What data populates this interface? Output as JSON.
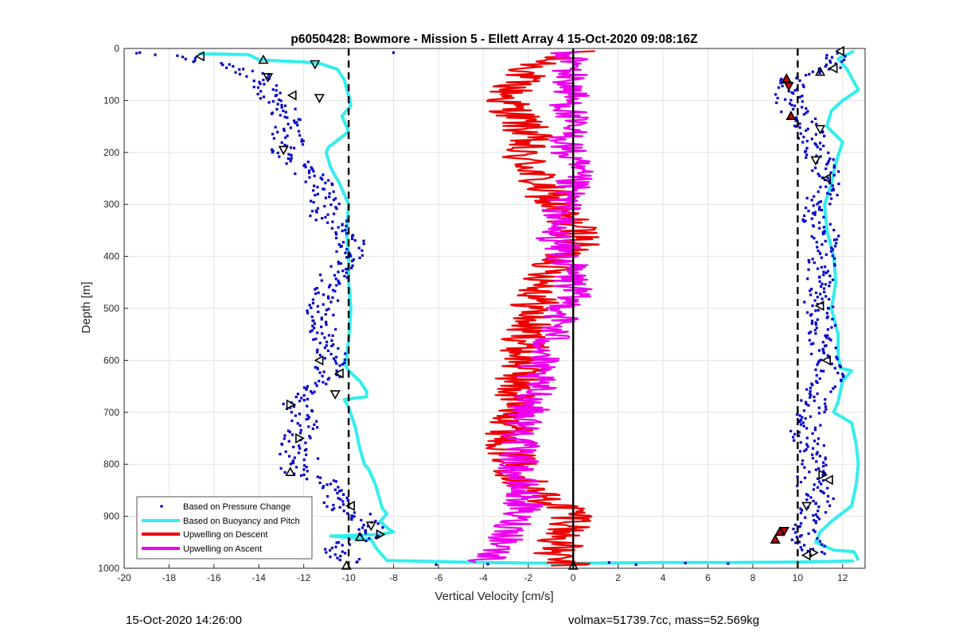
{
  "chart_data": {
    "type": "scatter",
    "title": "p6050428: Bowmore - Mission 5 - Ellett Array 4 15-Oct-2020 09:08:16Z",
    "xlabel": "Vertical Velocity [cm/s]",
    "ylabel": "Depth [m]",
    "xlim": [
      -20,
      13
    ],
    "ylim": [
      0,
      1000
    ],
    "y_reversed": true,
    "grid": true,
    "legend_placement": "bottom-left",
    "x_ticks": [
      -20,
      -18,
      -16,
      -14,
      -12,
      -10,
      -8,
      -6,
      -4,
      -2,
      0,
      2,
      4,
      6,
      8,
      10,
      12
    ],
    "y_ticks": [
      0,
      100,
      200,
      300,
      400,
      500,
      600,
      700,
      800,
      900,
      1000
    ],
    "reference_lines": [
      {
        "x": -10,
        "style": "dashed",
        "color": "#000000"
      },
      {
        "x": 10,
        "style": "dashed",
        "color": "#000000"
      },
      {
        "x": 0,
        "style": "solid",
        "color": "#000000"
      }
    ],
    "series": [
      {
        "name": "Based on Pressure Change",
        "style": "dots",
        "color": "#0000c8",
        "profiles": [
          {
            "x": [
              -19.3,
              -16.8,
              -14.2,
              -13.8,
              -13.5,
              -12.9,
              -12.7,
              -12.8,
              -12.6,
              -12.9,
              -12.1,
              -11.5,
              -11.3,
              -11.0,
              -11.3,
              -10.2,
              -9.9,
              -10.0,
              -10.6,
              -10.9,
              -11.1,
              -11.3,
              -11.2,
              -10.8,
              -10.8,
              -10.9,
              -11.3,
              -12.5,
              -12.2,
              -12.0,
              -12.3,
              -12.5,
              -11.8,
              -12.6,
              -11.2,
              -10.7,
              -10.5,
              -9.5,
              -9.0,
              -8.8,
              -10.6,
              -10.0
            ],
            "y": [
              10,
              20,
              50,
              70,
              90,
              110,
              140,
              160,
              180,
              195,
              230,
              250,
              270,
              300,
              320,
              340,
              370,
              400,
              430,
              460,
              490,
              520,
              550,
              580,
              600,
              630,
              650,
              680,
              700,
              730,
              750,
              780,
              790,
              810,
              830,
              850,
              880,
              900,
              920,
              930,
              960,
              990
            ]
          },
          {
            "x": [
              12.0,
              11.3,
              9.7,
              9.6,
              9.8,
              10.3,
              10.6,
              10.9,
              11.1,
              11.5,
              11.0,
              10.8,
              11.2,
              11.0,
              11.1,
              10.9,
              11.0,
              11.1,
              11.3,
              11.5,
              10.9,
              10.6,
              10.3,
              10.8,
              10.6,
              10.5,
              11.1,
              10.8,
              10.5,
              10.0,
              10.3,
              10.6,
              10.8
            ],
            "y": [
              10,
              40,
              60,
              90,
              120,
              140,
              170,
              200,
              230,
              260,
              290,
              330,
              360,
              400,
              440,
              480,
              520,
              560,
              600,
              630,
              660,
              700,
              740,
              780,
              810,
              840,
              860,
              880,
              900,
              920,
              940,
              960,
              975
            ]
          }
        ]
      },
      {
        "name": "Based on Buoyancy and Pitch",
        "style": "thick-line",
        "color": "#33eeee",
        "profiles": [
          {
            "x": [
              -16.7,
              -14.5,
              -14.3,
              -14.0,
              -13.0,
              -12.0,
              -11.2,
              -10.5,
              -10.2,
              -10.0,
              -9.9,
              -10.3,
              -10.0,
              -10.9,
              -11.0,
              -10.8,
              -10.4,
              -10.0,
              -10.1,
              -10.0,
              -10.0,
              -9.9,
              -10.0,
              -10.1,
              -10.2,
              -10.0,
              -9.5,
              -9.2,
              -9.2,
              -10.2,
              -10.0,
              -9.7,
              -9.5,
              -9.3,
              -9.1,
              -9.0,
              -8.8,
              -8.6,
              -8.5,
              -8.3,
              -8.6,
              -8.2,
              -8.0,
              -8.6,
              -10.8,
              -9.0,
              -8.8,
              -8.5,
              -8.3,
              -5.0,
              -2.0,
              1.0,
              4.0,
              7.0,
              10.0,
              12.5
            ],
            "y": [
              10,
              12,
              15,
              22,
              24,
              26,
              30,
              40,
              60,
              90,
              110,
              130,
              160,
              190,
              200,
              230,
              260,
              300,
              350,
              400,
              450,
              500,
              560,
              600,
              605,
              620,
              640,
              660,
              670,
              675,
              690,
              730,
              770,
              800,
              810,
              820,
              840,
              870,
              885,
              895,
              910,
              925,
              930,
              935,
              938,
              945,
              960,
              975,
              985,
              988,
              990,
              990,
              989,
              989,
              988,
              986
            ]
          },
          {
            "x": [
              12.5,
              11.8,
              12.2,
              12.7,
              12.0,
              11.5,
              11.3,
              12.0,
              11.7,
              11.5,
              11.2,
              11.3,
              11.6,
              11.7,
              11.5,
              11.8,
              11.8,
              11.9,
              12.4,
              12.0,
              11.8,
              11.6,
              12.4,
              12.6,
              12.7,
              12.6,
              12.4,
              11.8,
              11.5,
              11.0,
              10.8,
              11.6,
              12.5,
              12.6,
              12.7
            ],
            "y": [
              5,
              20,
              40,
              80,
              100,
              120,
              150,
              180,
              220,
              260,
              300,
              350,
              400,
              450,
              500,
              550,
              590,
              615,
              620,
              640,
              680,
              700,
              720,
              760,
              800,
              840,
              880,
              900,
              910,
              930,
              950,
              965,
              968,
              975,
              985
            ]
          }
        ]
      },
      {
        "name": "Upwelling on Descent",
        "style": "jagged-line",
        "color": "#ee0000",
        "profiles": [
          {
            "x": [
              0.0,
              -1.5,
              -2.5,
              -3.0,
              -2.3,
              -2.0,
              -2.5,
              -1.8,
              -1.6,
              -1.1,
              -1.0,
              -0.5,
              0.0,
              0.3,
              0.0,
              -0.5,
              -1.0,
              -1.3,
              -1.8,
              -2.0,
              -2.2,
              -2.3,
              -2.6,
              -2.4,
              -2.8,
              -2.8,
              -2.4,
              -1.8,
              -1.2,
              0.0,
              0.2,
              -0.4,
              -0.7,
              -1.0,
              0.0
            ],
            "y": [
              5,
              30,
              60,
              100,
              140,
              170,
              200,
              230,
              260,
              280,
              300,
              320,
              340,
              360,
              380,
              400,
              430,
              460,
              500,
              540,
              580,
              620,
              660,
              700,
              740,
              780,
              820,
              850,
              870,
              890,
              910,
              930,
              960,
              980,
              995
            ]
          }
        ]
      },
      {
        "name": "Upwelling on Ascent",
        "style": "jagged-line",
        "color": "#ee00ee",
        "profiles": [
          {
            "x": [
              -0.6,
              0.0,
              -0.2,
              -0.1,
              -0.2,
              -0.2,
              -0.3,
              0.0,
              -0.1,
              -0.3,
              -0.6,
              -0.9,
              -0.6,
              -0.2,
              0.0,
              -0.3,
              -0.8,
              -1.2,
              -1.8,
              -1.6,
              -2.0,
              -2.4,
              -2.5,
              -2.3,
              -2.2,
              -2.6,
              -2.7,
              -3.2,
              -4.0
            ],
            "y": [
              5,
              20,
              50,
              90,
              130,
              170,
              200,
              230,
              260,
              290,
              320,
              350,
              380,
              420,
              460,
              500,
              540,
              580,
              620,
              660,
              700,
              760,
              820,
              860,
              880,
              900,
              930,
              960,
              990
            ]
          }
        ]
      }
    ],
    "markers": [
      {
        "kind": "triangle-up",
        "color": "#000000",
        "points": [
          {
            "x": -13.8,
            "y": 22
          },
          {
            "x": -10.1,
            "y": 995
          },
          {
            "x": -12.6,
            "y": 815
          },
          {
            "x": -9.5,
            "y": 940
          },
          {
            "x": 0.0,
            "y": 995
          },
          {
            "x": 11.0,
            "y": 45
          }
        ]
      },
      {
        "kind": "triangle-down",
        "color": "#000000",
        "points": [
          {
            "x": -11.5,
            "y": 30
          },
          {
            "x": -13.6,
            "y": 55
          },
          {
            "x": -11.3,
            "y": 95
          },
          {
            "x": -12.9,
            "y": 195
          },
          {
            "x": -10.6,
            "y": 665
          },
          {
            "x": -9.0,
            "y": 918
          },
          {
            "x": 10.8,
            "y": 215
          },
          {
            "x": 11.0,
            "y": 155
          },
          {
            "x": 10.4,
            "y": 880
          }
        ]
      },
      {
        "kind": "triangle-left",
        "color": "#000000",
        "points": [
          {
            "x": -16.6,
            "y": 15
          },
          {
            "x": -12.5,
            "y": 90
          },
          {
            "x": -11.3,
            "y": 600
          },
          {
            "x": -10.4,
            "y": 625
          },
          {
            "x": -9.9,
            "y": 880
          },
          {
            "x": 11.9,
            "y": 5
          },
          {
            "x": 11.6,
            "y": 38
          },
          {
            "x": 11.3,
            "y": 250
          },
          {
            "x": 11.0,
            "y": 495
          },
          {
            "x": 11.3,
            "y": 600
          },
          {
            "x": 11.4,
            "y": 830
          },
          {
            "x": 10.4,
            "y": 975
          }
        ]
      },
      {
        "kind": "triangle-right",
        "color": "#000000",
        "points": [
          {
            "x": -12.6,
            "y": 685
          },
          {
            "x": -12.2,
            "y": 750
          },
          {
            "x": -8.6,
            "y": 935
          },
          {
            "x": 11.1,
            "y": 820
          },
          {
            "x": 10.7,
            "y": 970
          }
        ]
      },
      {
        "kind": "triangle-up",
        "color": "#cc0000",
        "points": [
          {
            "x": 9.5,
            "y": 58
          },
          {
            "x": 9.7,
            "y": 130
          },
          {
            "x": 9.2,
            "y": 930
          },
          {
            "x": 9.0,
            "y": 945
          }
        ]
      },
      {
        "kind": "triangle-down",
        "color": "#cc0000",
        "points": [
          {
            "x": 9.6,
            "y": 72
          },
          {
            "x": 9.4,
            "y": 928
          }
        ]
      }
    ]
  },
  "footer": {
    "left": "15-Oct-2020 14:26:00",
    "right": "volmax=51739.7cc, mass=52.569kg"
  },
  "colors": {
    "pressure": "#0000c8",
    "buoyancy": "#33eeee",
    "descent": "#ee0000",
    "ascent": "#ee00ee",
    "grid": "#e3e3e3"
  }
}
